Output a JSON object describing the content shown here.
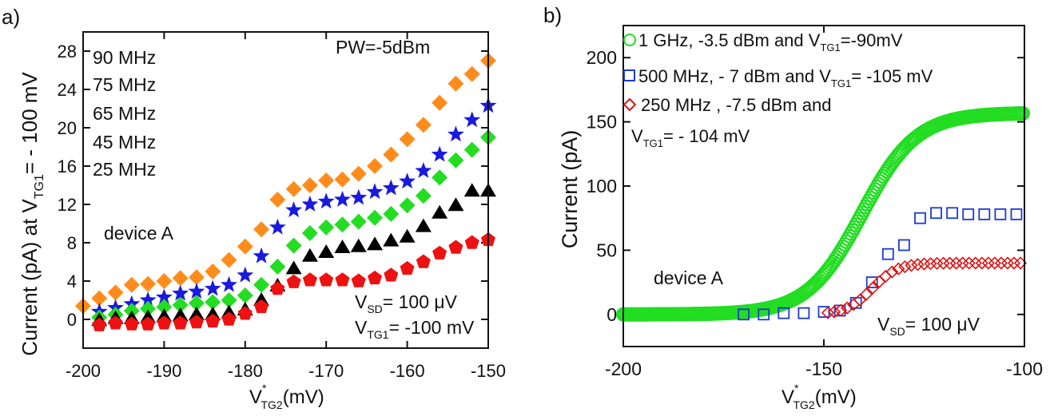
{
  "chart_data": [
    {
      "panel_label": "a)",
      "type": "scatter",
      "xlim": [
        -200,
        -150
      ],
      "ylim": [
        -3,
        30
      ],
      "x_ticks": [
        -200,
        -190,
        -180,
        -170,
        -160,
        -150
      ],
      "y_ticks": [
        0,
        4,
        8,
        12,
        16,
        20,
        24,
        28
      ],
      "ylabel_parts": [
        "Current (pA) at V",
        "TG1",
        "= - 100 mV"
      ],
      "xlabel_parts": [
        "V",
        "*",
        "TG2",
        "(mV)"
      ],
      "series": [
        {
          "name": "90 MHz",
          "marker": "diamond",
          "color": "#ff8c1a",
          "x": [
            -200,
            -198,
            -196,
            -194,
            -192,
            -190,
            -188,
            -186,
            -184,
            -182,
            -180,
            -178,
            -176,
            -174,
            -172,
            -170,
            -168,
            -166,
            -164,
            -162,
            -160,
            -158,
            -156,
            -154,
            -152,
            -150
          ],
          "y": [
            1.4,
            2.2,
            2.8,
            3.6,
            3.7,
            4.0,
            4.3,
            4.4,
            5.0,
            6.2,
            7.6,
            9.4,
            12.5,
            13.6,
            14.0,
            14.5,
            14.6,
            15.2,
            16.0,
            17.2,
            18.8,
            20.3,
            22.6,
            24.6,
            25.6,
            27.0
          ]
        },
        {
          "name": "75 MHz",
          "marker": "star",
          "color": "#1a1adf",
          "x": [
            -198,
            -196,
            -194,
            -192,
            -190,
            -188,
            -186,
            -184,
            -182,
            -180,
            -178,
            -176,
            -174,
            -172,
            -170,
            -168,
            -166,
            -164,
            -162,
            -160,
            -158,
            -156,
            -154,
            -152,
            -150
          ],
          "y": [
            0.8,
            1.2,
            1.6,
            2.0,
            2.3,
            2.7,
            2.9,
            3.2,
            3.6,
            4.6,
            6.6,
            9.6,
            11.4,
            12.0,
            12.3,
            12.5,
            12.7,
            13.3,
            13.7,
            14.4,
            15.5,
            17.2,
            19.3,
            20.8,
            22.3
          ]
        },
        {
          "name": "65 MHz",
          "marker": "diamond",
          "color": "#22dd22",
          "x": [
            -198,
            -196,
            -194,
            -192,
            -190,
            -188,
            -186,
            -184,
            -182,
            -180,
            -178,
            -176,
            -174,
            -172,
            -170,
            -168,
            -166,
            -164,
            -162,
            -160,
            -158,
            -156,
            -154,
            -152,
            -150
          ],
          "y": [
            0.2,
            0.5,
            0.9,
            1.1,
            1.3,
            1.5,
            1.7,
            1.8,
            2.0,
            2.5,
            3.6,
            5.5,
            7.7,
            9.0,
            9.6,
            9.9,
            10.2,
            10.6,
            11.0,
            11.9,
            12.9,
            14.8,
            16.6,
            17.7,
            19.0
          ]
        },
        {
          "name": "45 MHz",
          "marker": "triangle",
          "color": "#000000",
          "x": [
            -198,
            -196,
            -194,
            -192,
            -190,
            -188,
            -186,
            -184,
            -182,
            -180,
            -178,
            -176,
            -174,
            -172,
            -170,
            -168,
            -166,
            -164,
            -162,
            -160,
            -158,
            -156,
            -154,
            -152,
            -150
          ],
          "y": [
            -0.1,
            0.1,
            0.1,
            0.2,
            0.3,
            0.4,
            0.5,
            0.5,
            0.7,
            1.0,
            2.0,
            3.5,
            5.3,
            6.6,
            7.0,
            7.5,
            7.6,
            7.8,
            8.2,
            8.6,
            9.7,
            11.1,
            11.9,
            13.4,
            13.4
          ]
        },
        {
          "name": "25 MHz",
          "marker": "pentagon",
          "color": "#ee1111",
          "x": [
            -198,
            -196,
            -194,
            -192,
            -190,
            -188,
            -186,
            -184,
            -182,
            -180,
            -178,
            -176,
            -174,
            -172,
            -170,
            -168,
            -166,
            -164,
            -162,
            -160,
            -158,
            -156,
            -154,
            -152,
            -150
          ],
          "y": [
            -0.6,
            -0.4,
            -0.5,
            -0.5,
            -0.4,
            -0.4,
            -0.3,
            -0.2,
            0.0,
            0.6,
            1.3,
            3.2,
            3.9,
            4.1,
            4.1,
            4.1,
            4.0,
            4.3,
            4.6,
            5.3,
            6.0,
            6.9,
            7.5,
            8.0,
            8.3
          ]
        }
      ],
      "legend_labels": [
        "90 MHz",
        "75 MHz",
        "65 MHz",
        "45 MHz",
        "25 MHz"
      ],
      "annotations": {
        "pw": "PW=-5dBm",
        "device": "device A",
        "vsd": [
          "V",
          "SD",
          "= 100 μV"
        ],
        "vtg1": [
          "V",
          "TG1",
          "= -100 mV"
        ]
      }
    },
    {
      "panel_label": "b)",
      "type": "scatter",
      "xlim": [
        -200,
        -100
      ],
      "ylim": [
        -25,
        225
      ],
      "x_ticks": [
        -200,
        -150,
        -100
      ],
      "y_ticks": [
        0,
        50,
        100,
        150,
        200
      ],
      "ylabel": "Current (pA)",
      "xlabel_parts": [
        "V",
        "*",
        "TG2",
        "(mV)"
      ],
      "series": [
        {
          "name_parts": [
            "1 GHz, -3.5 dBm and V",
            "TG1",
            "=-90mV"
          ],
          "marker": "circle-open",
          "color": "#22dd22",
          "curve": {
            "x0": -200,
            "x1": -100,
            "step": 0.4,
            "amplitude": 157,
            "center": -140.5,
            "width": 6.8
          }
        },
        {
          "name_parts": [
            "500 MHz, - 7 dBm and V",
            "TG1",
            "= -105 mV"
          ],
          "marker": "square-open",
          "color": "#1a3ad6",
          "x": [
            -170,
            -165,
            -160,
            -155,
            -150,
            -146,
            -142,
            -138,
            -134,
            -130,
            -126,
            -122,
            -118,
            -114,
            -110,
            -106,
            -102
          ],
          "y": [
            0,
            0,
            1,
            1,
            2,
            3,
            9,
            25,
            47,
            54,
            75,
            79,
            79,
            78,
            78,
            78,
            78
          ]
        },
        {
          "name_parts": [
            "250 MHz , -7.5 dBm and",
            "V",
            "TG1",
            "= - 104 mV"
          ],
          "marker": "diamond-open",
          "color": "#dd1111",
          "curve": {
            "x0": -149,
            "x1": -100,
            "step": 1.6,
            "amplitude": 40,
            "center": -138,
            "width": 3.2
          }
        }
      ],
      "annotations": {
        "device": "device A",
        "vsd": [
          "V",
          "SD",
          "= 100 μV"
        ]
      }
    }
  ]
}
